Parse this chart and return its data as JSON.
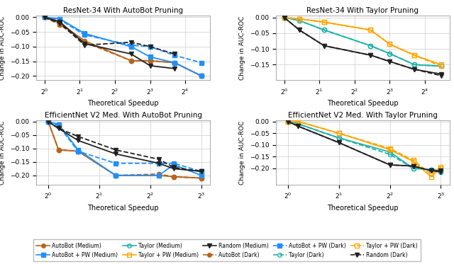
{
  "titles": [
    "ResNet-34 With AutoBot Pruning",
    "ResNet-34 With Taylor Pruning",
    "EfficientNet V2 Med. With AutoBot Pruning",
    "EfficientNet V2 Med. With Taylor Pruning"
  ],
  "xlabel": "Theoretical Speedup",
  "ylabel": "Change in AUC-ROC",
  "colors": {
    "autobot": "#b5651d",
    "autobot_pw": "#1e90ff",
    "taylor": "#20b2aa",
    "taylor_pw": "#ffa500",
    "random": "#222222"
  },
  "subplot_data": {
    "top_left": {
      "xvals": [
        1.0,
        1.35,
        2.2,
        5.5,
        8.0,
        13.0,
        22.0
      ],
      "autobot_medium": [
        0.0,
        -0.02,
        -0.08,
        -0.148,
        -0.148,
        -0.155,
        -0.2
      ],
      "autobot_dark": [
        0.0,
        -0.025,
        -0.085,
        -0.148,
        -0.148,
        -0.155,
        -0.2
      ],
      "autobot_pw_medium": [
        0.0,
        -0.005,
        -0.055,
        -0.1,
        -0.135,
        -0.155,
        -0.2
      ],
      "autobot_pw_dark": [
        0.0,
        -0.008,
        -0.06,
        -0.095,
        -0.1,
        -0.13,
        -0.155
      ],
      "random_medium": [
        0.0,
        -0.015,
        -0.09,
        -0.125,
        -0.165,
        -0.175,
        null
      ],
      "random_dark": [
        0.0,
        -0.02,
        -0.095,
        -0.085,
        -0.1,
        -0.125,
        null
      ],
      "xlim": [
        0.85,
        26
      ],
      "ylim": [
        -0.215,
        0.005
      ],
      "yticks": [
        0.0,
        -0.05,
        -0.1,
        -0.15,
        -0.2
      ],
      "xticks": [
        1,
        2,
        4,
        8,
        16
      ]
    },
    "top_right": {
      "xvals": [
        1.0,
        1.35,
        2.2,
        5.5,
        8.0,
        13.0,
        22.0
      ],
      "taylor_medium": [
        0.0,
        -0.01,
        -0.04,
        -0.09,
        -0.115,
        -0.15,
        -0.155
      ],
      "taylor_dark": [
        0.0,
        -0.01,
        -0.04,
        -0.09,
        -0.115,
        -0.15,
        -0.155
      ],
      "taylor_pw_medium": [
        0.0,
        -0.005,
        -0.015,
        -0.04,
        -0.085,
        -0.12,
        -0.15
      ],
      "taylor_pw_dark": [
        0.0,
        -0.005,
        -0.015,
        -0.04,
        -0.085,
        -0.12,
        -0.155
      ],
      "random_medium": [
        0.0,
        -0.04,
        -0.09,
        -0.12,
        -0.14,
        -0.165,
        -0.18
      ],
      "random_dark": [
        0.0,
        -0.04,
        -0.09,
        -0.12,
        -0.14,
        -0.165,
        -0.185
      ],
      "xlim": [
        0.85,
        26
      ],
      "ylim": [
        -0.2,
        0.005
      ],
      "yticks": [
        0.0,
        -0.05,
        -0.1,
        -0.15
      ],
      "xticks": [
        1,
        2,
        4,
        8,
        16
      ]
    },
    "bottom_left": {
      "xvals": [
        1.0,
        1.15,
        1.5,
        2.5,
        4.5,
        5.5,
        8.0
      ],
      "autobot_medium": [
        0.0,
        -0.105,
        -0.11,
        -0.2,
        -0.2,
        -0.205,
        -0.21
      ],
      "autobot_dark": [
        0.0,
        -0.105,
        -0.11,
        -0.2,
        -0.195,
        -0.205,
        -0.21
      ],
      "autobot_pw_medium": [
        0.0,
        -0.01,
        -0.105,
        -0.2,
        -0.2,
        -0.16,
        -0.2
      ],
      "autobot_pw_dark": [
        0.0,
        -0.015,
        -0.11,
        -0.155,
        -0.155,
        -0.155,
        -0.185
      ],
      "random_medium": [
        0.0,
        -0.025,
        -0.07,
        -0.12,
        -0.155,
        -0.175,
        -0.185
      ],
      "random_dark": [
        0.0,
        -0.025,
        -0.055,
        -0.105,
        -0.14,
        -0.17,
        -0.185
      ],
      "xlim": [
        0.85,
        9
      ],
      "ylim": [
        -0.235,
        0.005
      ],
      "yticks": [
        0.0,
        -0.05,
        -0.1,
        -0.15,
        -0.2
      ],
      "xticks": [
        1,
        2,
        4,
        8
      ]
    },
    "bottom_right": {
      "xvals": [
        1.0,
        1.15,
        2.0,
        4.0,
        5.5,
        7.0,
        8.0
      ],
      "taylor_medium": [
        0.0,
        -0.01,
        -0.07,
        -0.13,
        -0.2,
        -0.205,
        -0.21
      ],
      "taylor_dark": [
        0.0,
        -0.01,
        -0.07,
        -0.14,
        -0.2,
        -0.205,
        -0.215
      ],
      "taylor_pw_medium": [
        0.0,
        0.0,
        -0.05,
        -0.12,
        -0.17,
        -0.235,
        -0.2
      ],
      "taylor_pw_dark": [
        0.0,
        0.0,
        -0.05,
        -0.115,
        -0.165,
        -0.225,
        -0.195
      ],
      "random_medium": [
        0.0,
        -0.02,
        -0.09,
        -0.185,
        -0.19,
        -0.21,
        -0.21
      ],
      "random_dark": [
        0.0,
        -0.02,
        -0.09,
        -0.185,
        -0.19,
        -0.21,
        -0.215
      ],
      "xlim": [
        0.85,
        9
      ],
      "ylim": [
        -0.27,
        0.005
      ],
      "yticks": [
        0.0,
        -0.05,
        -0.1,
        -0.15,
        -0.2
      ],
      "xticks": [
        1,
        2,
        4,
        8
      ]
    }
  },
  "legend": {
    "autobot_medium_label": "AutoBot (Medium)",
    "autobot_dark_label": "AutoBot (Dark)",
    "autobot_pw_medium_label": "AutoBot + PW (Medium)",
    "autobot_pw_dark_label": "AutoBot + PW (Dark)",
    "taylor_medium_label": "Taylor (Medium)",
    "taylor_dark_label": "Taylor (Dark)",
    "taylor_pw_medium_label": "Taylor + PW (Medium)",
    "taylor_pw_dark_label": "Taylor + PW (Dark)",
    "random_medium_label": "Random (Medium)",
    "random_dark_label": "Random (Dark)"
  }
}
